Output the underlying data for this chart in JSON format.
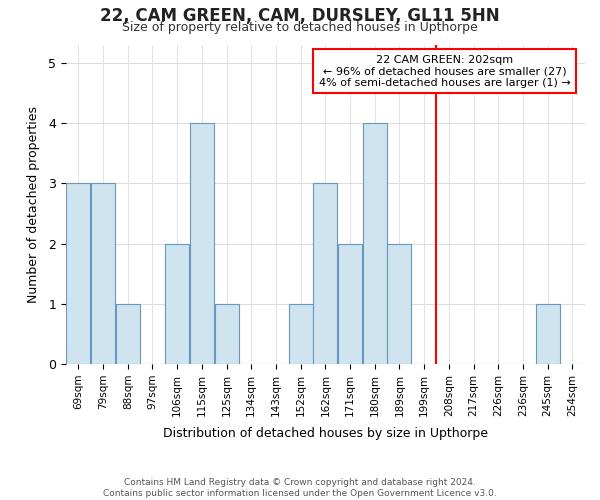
{
  "title": "22, CAM GREEN, CAM, DURSLEY, GL11 5HN",
  "subtitle": "Size of property relative to detached houses in Upthorpe",
  "xlabel": "Distribution of detached houses by size in Upthorpe",
  "ylabel": "Number of detached properties",
  "footer_line1": "Contains HM Land Registry data © Crown copyright and database right 2024.",
  "footer_line2": "Contains public sector information licensed under the Open Government Licence v3.0.",
  "categories": [
    "69sqm",
    "79sqm",
    "88sqm",
    "97sqm",
    "106sqm",
    "115sqm",
    "125sqm",
    "134sqm",
    "143sqm",
    "152sqm",
    "162sqm",
    "171sqm",
    "180sqm",
    "189sqm",
    "199sqm",
    "208sqm",
    "217sqm",
    "226sqm",
    "236sqm",
    "245sqm",
    "254sqm"
  ],
  "values": [
    3,
    3,
    1,
    0,
    2,
    4,
    1,
    0,
    0,
    1,
    3,
    2,
    4,
    2,
    0,
    0,
    0,
    0,
    0,
    1,
    0
  ],
  "bar_color": "#d0e4f0",
  "bar_edge_color": "#6699bb",
  "grid_color": "#dddddd",
  "vline_index": 14.5,
  "vline_color": "red",
  "annotation_line1": "22 CAM GREEN: 202sqm",
  "annotation_line2": "← 96% of detached houses are smaller (27)",
  "annotation_line3": "4% of semi-detached houses are larger (1) →",
  "annotation_box_color": "red",
  "annotation_bg_color": "#ffffff",
  "ylim": [
    0,
    5.3
  ],
  "yticks": [
    0,
    1,
    2,
    3,
    4,
    5
  ],
  "background_color": "#ffffff",
  "fig_width": 6.0,
  "fig_height": 5.0,
  "dpi": 100
}
